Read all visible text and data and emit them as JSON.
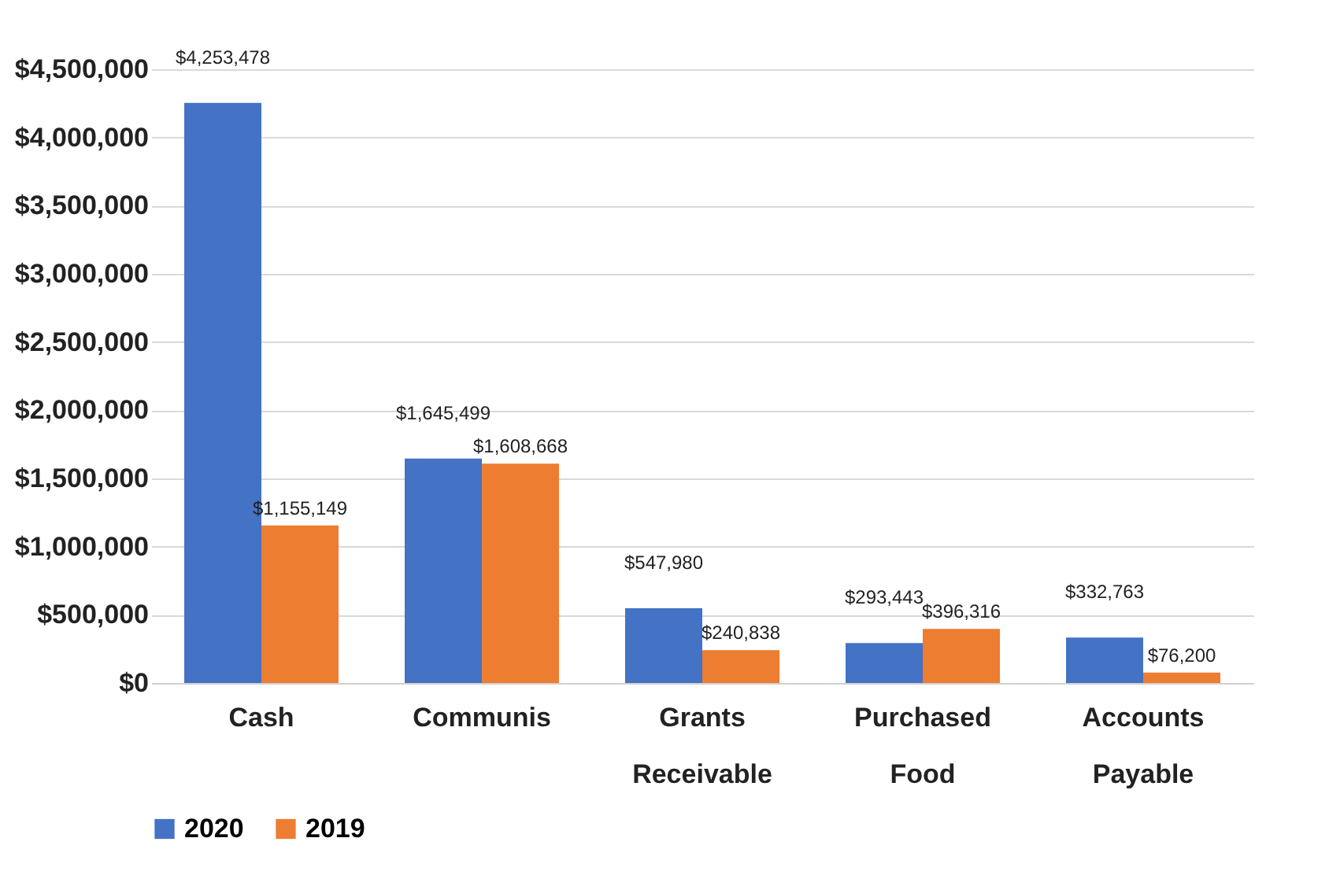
{
  "chart_data": {
    "type": "bar",
    "categories": [
      "Cash",
      "Communis",
      "Grants Receivable",
      "Purchased Food",
      "Accounts Payable"
    ],
    "series": [
      {
        "name": "2020",
        "color": "#4472c4",
        "values": [
          4253478,
          1645499,
          547980,
          293443,
          332763
        ],
        "value_labels": [
          "$4,253,478",
          "$1,645,499",
          "$547,980",
          "$293,443",
          "$332,763"
        ]
      },
      {
        "name": "2019",
        "color": "#ed7d31",
        "values": [
          1155149,
          1608668,
          240838,
          396316,
          76200
        ],
        "value_labels": [
          "$1,155,149",
          "$1,608,668",
          "$240,838",
          "$396,316",
          "$76,200"
        ]
      }
    ],
    "ylim": [
      0,
      4500000
    ],
    "yticks": [
      {
        "value": 0,
        "label": "$0"
      },
      {
        "value": 500000,
        "label": "$500,000"
      },
      {
        "value": 1000000,
        "label": "$1,000,000"
      },
      {
        "value": 1500000,
        "label": "$1,500,000"
      },
      {
        "value": 2000000,
        "label": "$2,000,000"
      },
      {
        "value": 2500000,
        "label": "$2,500,000"
      },
      {
        "value": 3000000,
        "label": "$3,000,000"
      },
      {
        "value": 3500000,
        "label": "$3,500,000"
      },
      {
        "value": 4000000,
        "label": "$4,000,000"
      },
      {
        "value": 4500000,
        "label": "$4,500,000"
      }
    ],
    "grid": "y",
    "legend": "bottom"
  }
}
